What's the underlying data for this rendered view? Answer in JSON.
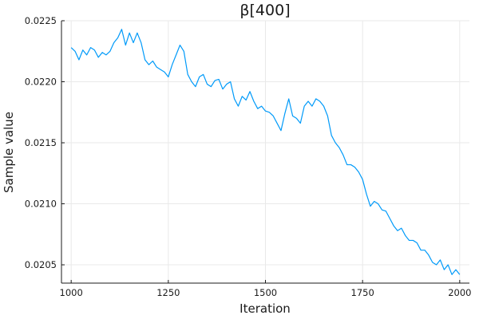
{
  "chart_data": {
    "type": "line",
    "title": "β[400]",
    "xlabel": "Iteration",
    "ylabel": "Sample value",
    "xlim": [
      975,
      2025
    ],
    "ylim": [
      0.02035,
      0.0225
    ],
    "x_ticks": [
      1000,
      1250,
      1500,
      1750,
      2000
    ],
    "x_tick_labels": [
      "1000",
      "1250",
      "1500",
      "1750",
      "2000"
    ],
    "y_ticks": [
      0.0205,
      0.021,
      0.0215,
      0.022,
      0.0225
    ],
    "y_tick_labels": [
      "0.0205",
      "0.0210",
      "0.0215",
      "0.0220",
      "0.0225"
    ],
    "grid": true,
    "legend": "none",
    "series_color": "#009af9",
    "series": [
      {
        "x": [
          1000,
          1010,
          1020,
          1030,
          1040,
          1050,
          1060,
          1070,
          1080,
          1090,
          1100,
          1110,
          1120,
          1130,
          1140,
          1150,
          1160,
          1170,
          1180,
          1190,
          1200,
          1210,
          1220,
          1230,
          1240,
          1250,
          1260,
          1270,
          1280,
          1290,
          1300,
          1310,
          1320,
          1330,
          1340,
          1350,
          1360,
          1370,
          1380,
          1390,
          1400,
          1410,
          1420,
          1430,
          1440,
          1450,
          1460,
          1470,
          1480,
          1490,
          1500,
          1510,
          1520,
          1530,
          1540,
          1550,
          1560,
          1570,
          1580,
          1590,
          1600,
          1610,
          1620,
          1630,
          1640,
          1650,
          1660,
          1670,
          1680,
          1690,
          1700,
          1710,
          1720,
          1730,
          1740,
          1750,
          1760,
          1770,
          1780,
          1790,
          1800,
          1810,
          1820,
          1830,
          1840,
          1850,
          1860,
          1870,
          1880,
          1890,
          1900,
          1910,
          1920,
          1930,
          1940,
          1950,
          1960,
          1970,
          1980,
          1990,
          2000
        ],
        "y": [
          0.02228,
          0.02225,
          0.02218,
          0.02226,
          0.02222,
          0.02228,
          0.02226,
          0.0222,
          0.02224,
          0.02222,
          0.02225,
          0.02232,
          0.02236,
          0.02243,
          0.0223,
          0.0224,
          0.02232,
          0.0224,
          0.02232,
          0.02218,
          0.02214,
          0.02217,
          0.02212,
          0.0221,
          0.02208,
          0.02204,
          0.02214,
          0.02222,
          0.0223,
          0.02225,
          0.02206,
          0.022,
          0.02196,
          0.02204,
          0.02206,
          0.02198,
          0.02196,
          0.02201,
          0.02202,
          0.02194,
          0.02198,
          0.022,
          0.02186,
          0.0218,
          0.02188,
          0.02185,
          0.02192,
          0.02184,
          0.02178,
          0.0218,
          0.02176,
          0.02175,
          0.02172,
          0.02166,
          0.0216,
          0.02174,
          0.02186,
          0.02172,
          0.0217,
          0.02166,
          0.0218,
          0.02184,
          0.0218,
          0.02186,
          0.02184,
          0.0218,
          0.02172,
          0.02156,
          0.0215,
          0.02146,
          0.0214,
          0.02132,
          0.02132,
          0.0213,
          0.02126,
          0.0212,
          0.02108,
          0.02098,
          0.02102,
          0.021,
          0.02095,
          0.02094,
          0.02088,
          0.02082,
          0.02078,
          0.0208,
          0.02074,
          0.0207,
          0.0207,
          0.02068,
          0.02062,
          0.02062,
          0.02058,
          0.02052,
          0.0205,
          0.02054,
          0.02046,
          0.0205,
          0.02042,
          0.02046,
          0.02042
        ]
      }
    ]
  }
}
